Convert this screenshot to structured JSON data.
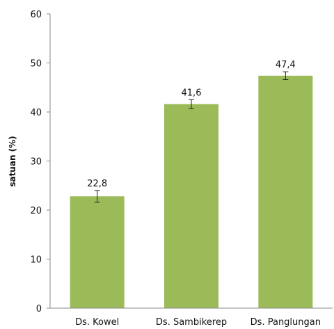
{
  "chart_data": {
    "type": "bar",
    "title": "",
    "xlabel": "",
    "ylabel": "satuan (%)",
    "categories": [
      "Ds. Kowel",
      "Ds. Sambikerep",
      "Ds. Panglungan"
    ],
    "values": [
      22.8,
      41.6,
      47.4
    ],
    "value_labels": [
      "22,8",
      "41,6",
      "47,4"
    ],
    "error": [
      1.2,
      0.9,
      0.8
    ],
    "ylim": [
      0,
      60
    ],
    "yticks": [
      0,
      10,
      20,
      30,
      40,
      50,
      60
    ],
    "grid": false,
    "bar_color": "#9bbb59"
  }
}
